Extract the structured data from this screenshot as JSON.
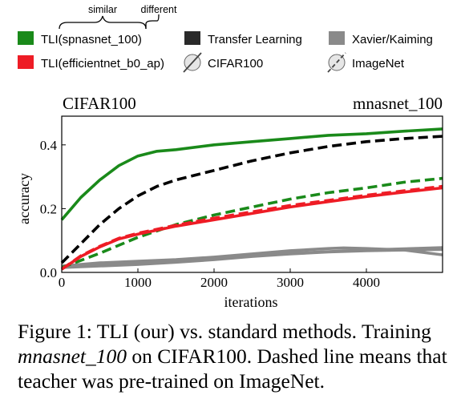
{
  "legend": {
    "brace_similar": "similar",
    "brace_different": "different",
    "items": [
      {
        "label": "TLI(spnasnet_100)",
        "color": "#1a8a1a",
        "kind": "box"
      },
      {
        "label": "TLI(efficientnet_b0_ap)",
        "color": "#ee1c25",
        "kind": "box"
      },
      {
        "label": "Transfer Learning",
        "color": "#2a2a2a",
        "kind": "box"
      },
      {
        "label": "CIFAR100",
        "color": "#dddddd",
        "kind": "circle"
      },
      {
        "label": "Xavier/Kaiming",
        "color": "#8a8a8a",
        "kind": "box"
      },
      {
        "label": "ImageNet",
        "color": "#dddddd",
        "kind": "circle"
      }
    ]
  },
  "chart_data": {
    "type": "line",
    "title_left": "CIFAR100",
    "title_right": "mnasnet_100",
    "xlabel": "iterations",
    "ylabel": "accuracy",
    "xlim": [
      0,
      5000
    ],
    "ylim": [
      0,
      0.49
    ],
    "xticks": [
      0,
      1000,
      2000,
      3000,
      4000
    ],
    "xtick_labels": [
      "0",
      "1000",
      "2000",
      "3000",
      "4000"
    ],
    "yticks": [
      0.0,
      0.2,
      0.4
    ],
    "ytick_labels": [
      "0.0",
      "0.2",
      "0.4"
    ],
    "grid": false,
    "series": [
      {
        "name": "TLI(spnasnet_100)",
        "color": "#1a8a1a",
        "dashed": false,
        "x": [
          0,
          250,
          500,
          750,
          1000,
          1250,
          1500,
          2000,
          2500,
          3000,
          3500,
          4000,
          4500,
          5000
        ],
        "y": [
          0.165,
          0.235,
          0.29,
          0.335,
          0.365,
          0.38,
          0.385,
          0.4,
          0.41,
          0.42,
          0.43,
          0.435,
          0.443,
          0.45
        ]
      },
      {
        "name": "TLI(spnasnet_100) (ImageNet teacher)",
        "color": "#1a8a1a",
        "dashed": true,
        "x": [
          0,
          500,
          1000,
          1500,
          2000,
          2500,
          3000,
          3500,
          4000,
          4500,
          5000
        ],
        "y": [
          0.015,
          0.06,
          0.11,
          0.15,
          0.18,
          0.205,
          0.23,
          0.25,
          0.265,
          0.283,
          0.295
        ]
      },
      {
        "name": "TLI(efficientnet_b0_ap)",
        "color": "#ee1c25",
        "dashed": false,
        "x": [
          0,
          250,
          500,
          750,
          1000,
          1500,
          2000,
          2500,
          3000,
          3500,
          4000,
          4500,
          5000
        ],
        "y": [
          0.01,
          0.05,
          0.08,
          0.105,
          0.12,
          0.145,
          0.165,
          0.185,
          0.205,
          0.222,
          0.238,
          0.252,
          0.265
        ]
      },
      {
        "name": "TLI(efficientnet_b0_ap) (ImageNet teacher)",
        "color": "#ee1c25",
        "dashed": true,
        "x": [
          0,
          250,
          500,
          750,
          1000,
          1500,
          2000,
          2500,
          3000,
          3500,
          4000,
          4500,
          5000
        ],
        "y": [
          0.01,
          0.052,
          0.082,
          0.107,
          0.123,
          0.148,
          0.17,
          0.19,
          0.21,
          0.226,
          0.242,
          0.256,
          0.27
        ]
      },
      {
        "name": "Transfer Learning (ImageNet teacher)",
        "color": "#000000",
        "dashed": true,
        "x": [
          0,
          250,
          500,
          750,
          1000,
          1250,
          1500,
          2000,
          2500,
          3000,
          3500,
          4000,
          4500,
          5000
        ],
        "y": [
          0.03,
          0.09,
          0.15,
          0.2,
          0.24,
          0.27,
          0.29,
          0.32,
          0.35,
          0.375,
          0.395,
          0.41,
          0.42,
          0.427
        ]
      },
      {
        "name": "Xavier/Kaiming 1",
        "color": "#8a8a8a",
        "dashed": false,
        "x": [
          0,
          500,
          1000,
          1500,
          2000,
          2500,
          3000,
          3500,
          3700,
          4000,
          4500,
          5000
        ],
        "y": [
          0.02,
          0.03,
          0.035,
          0.04,
          0.048,
          0.058,
          0.068,
          0.075,
          0.077,
          0.075,
          0.07,
          0.055
        ]
      },
      {
        "name": "Xavier/Kaiming 2",
        "color": "#8a8a8a",
        "dashed": false,
        "x": [
          0,
          500,
          1000,
          1500,
          2000,
          2500,
          3000,
          3500,
          4000,
          4500,
          5000
        ],
        "y": [
          0.02,
          0.025,
          0.03,
          0.038,
          0.045,
          0.052,
          0.06,
          0.065,
          0.07,
          0.074,
          0.078
        ]
      },
      {
        "name": "Xavier/Kaiming 3",
        "color": "#8a8a8a",
        "dashed": false,
        "x": [
          0,
          500,
          1000,
          1500,
          2000,
          2500,
          3000,
          3500,
          4000,
          4500,
          5000
        ],
        "y": [
          0.015,
          0.02,
          0.025,
          0.032,
          0.04,
          0.05,
          0.058,
          0.064,
          0.068,
          0.07,
          0.072
        ]
      }
    ]
  },
  "caption": {
    "part1": "Figure 1: TLI (our) vs. standard methods. Training ",
    "model": "mnasnet_100",
    "part2": " on CIFAR100. Dashed line means that teacher was pre-trained on ImageNet."
  }
}
